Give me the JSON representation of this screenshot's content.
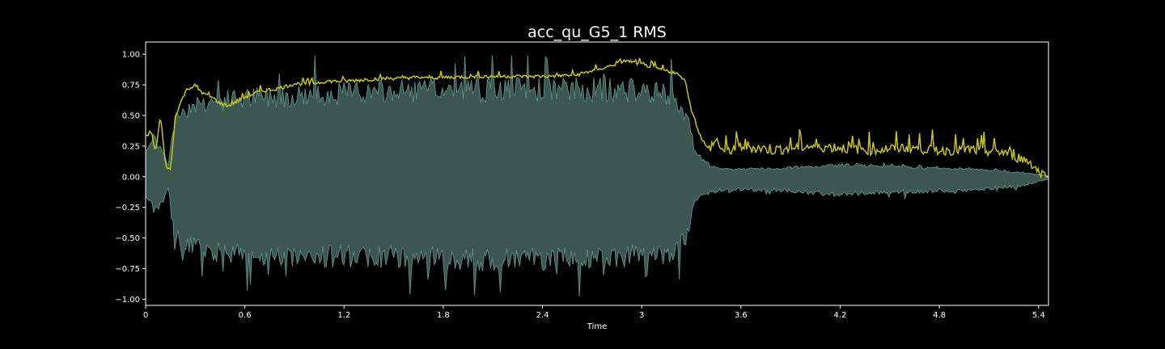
{
  "chart_data": {
    "type": "line",
    "title": "acc_qu_G5_1 RMS",
    "xlabel": "Time",
    "ylabel": "",
    "xlim": [
      0,
      5.46
    ],
    "ylim": [
      -1.05,
      1.1
    ],
    "x_ticks": [
      "0",
      "0.6",
      "1.2",
      "1.8",
      "2.4",
      "3",
      "3.6",
      "4.2",
      "4.8",
      "5.4"
    ],
    "x_tick_values": [
      0,
      0.6,
      1.2,
      1.8,
      2.4,
      3.0,
      3.6,
      4.2,
      4.8,
      5.4
    ],
    "y_ticks": [
      "1.00",
      "0.75",
      "0.50",
      "0.25",
      "0.00",
      "−0.25",
      "−0.50",
      "−0.75",
      "−1.00"
    ],
    "y_tick_values": [
      1.0,
      0.75,
      0.5,
      0.25,
      0.0,
      -0.25,
      -0.5,
      -0.75,
      -1.0
    ],
    "grid": false,
    "legend": "none",
    "colors": {
      "background": "#000000",
      "waveform_fill": "#3b5750",
      "waveform_edge": "#5a8a80",
      "rms_line": "#c8c41a",
      "axes": "#ffffff"
    },
    "series": [
      {
        "kind": "waveform-envelope",
        "x": [
          0,
          0.05,
          0.1,
          0.14,
          0.16,
          0.2,
          0.3,
          0.5,
          0.8,
          1.2,
          1.6,
          2.0,
          2.4,
          2.8,
          3.0,
          3.2,
          3.28,
          3.32,
          3.4,
          3.5,
          3.8,
          4.0,
          4.2,
          4.5,
          5.0,
          5.3,
          5.45
        ],
        "upper": [
          0.2,
          0.28,
          0.22,
          0.08,
          0.35,
          0.5,
          0.57,
          0.6,
          0.63,
          0.65,
          0.67,
          0.68,
          0.68,
          0.68,
          0.67,
          0.62,
          0.45,
          0.2,
          0.08,
          0.06,
          0.06,
          0.08,
          0.09,
          0.08,
          0.06,
          0.03,
          0.01
        ],
        "lower": [
          -0.15,
          -0.25,
          -0.2,
          -0.08,
          -0.35,
          -0.5,
          -0.55,
          -0.6,
          -0.62,
          -0.62,
          -0.63,
          -0.65,
          -0.65,
          -0.63,
          -0.62,
          -0.6,
          -0.45,
          -0.2,
          -0.12,
          -0.1,
          -0.1,
          -0.12,
          -0.14,
          -0.12,
          -0.1,
          -0.07,
          -0.02
        ],
        "upper_peaks": [
          0.7,
          0.72,
          0.7,
          0.75,
          0.78,
          0.8,
          0.78,
          0.84,
          0.86,
          0.86,
          0.9,
          0.92,
          0.9,
          0.88,
          0.6
        ],
        "lower_peaks": [
          -0.78,
          -0.8,
          -0.84,
          -0.82,
          -0.85,
          -0.88,
          -0.9,
          -0.95,
          -0.96,
          -0.88,
          -0.7
        ]
      },
      {
        "kind": "rms",
        "x": [
          0,
          0.03,
          0.06,
          0.09,
          0.12,
          0.15,
          0.18,
          0.21,
          0.25,
          0.3,
          0.35,
          0.4,
          0.45,
          0.5,
          0.6,
          0.7,
          0.8,
          0.9,
          1.0,
          1.1,
          1.2,
          1.4,
          1.6,
          1.8,
          2.0,
          2.2,
          2.4,
          2.6,
          2.8,
          2.9,
          3.0,
          3.1,
          3.2,
          3.26,
          3.3,
          3.35,
          3.4,
          3.45,
          3.5,
          3.6,
          3.8,
          4.0,
          4.2,
          4.4,
          4.6,
          4.8,
          5.0,
          5.2,
          5.35,
          5.4,
          5.45
        ],
        "y": [
          0.3,
          0.38,
          0.2,
          0.5,
          0.1,
          0.05,
          0.5,
          0.6,
          0.72,
          0.74,
          0.68,
          0.65,
          0.6,
          0.58,
          0.65,
          0.7,
          0.72,
          0.76,
          0.76,
          0.78,
          0.78,
          0.8,
          0.81,
          0.81,
          0.82,
          0.82,
          0.82,
          0.83,
          0.9,
          0.95,
          0.92,
          0.88,
          0.85,
          0.8,
          0.55,
          0.35,
          0.22,
          0.3,
          0.2,
          0.25,
          0.22,
          0.25,
          0.24,
          0.22,
          0.24,
          0.22,
          0.22,
          0.2,
          0.12,
          0.04,
          0.0
        ]
      }
    ]
  }
}
